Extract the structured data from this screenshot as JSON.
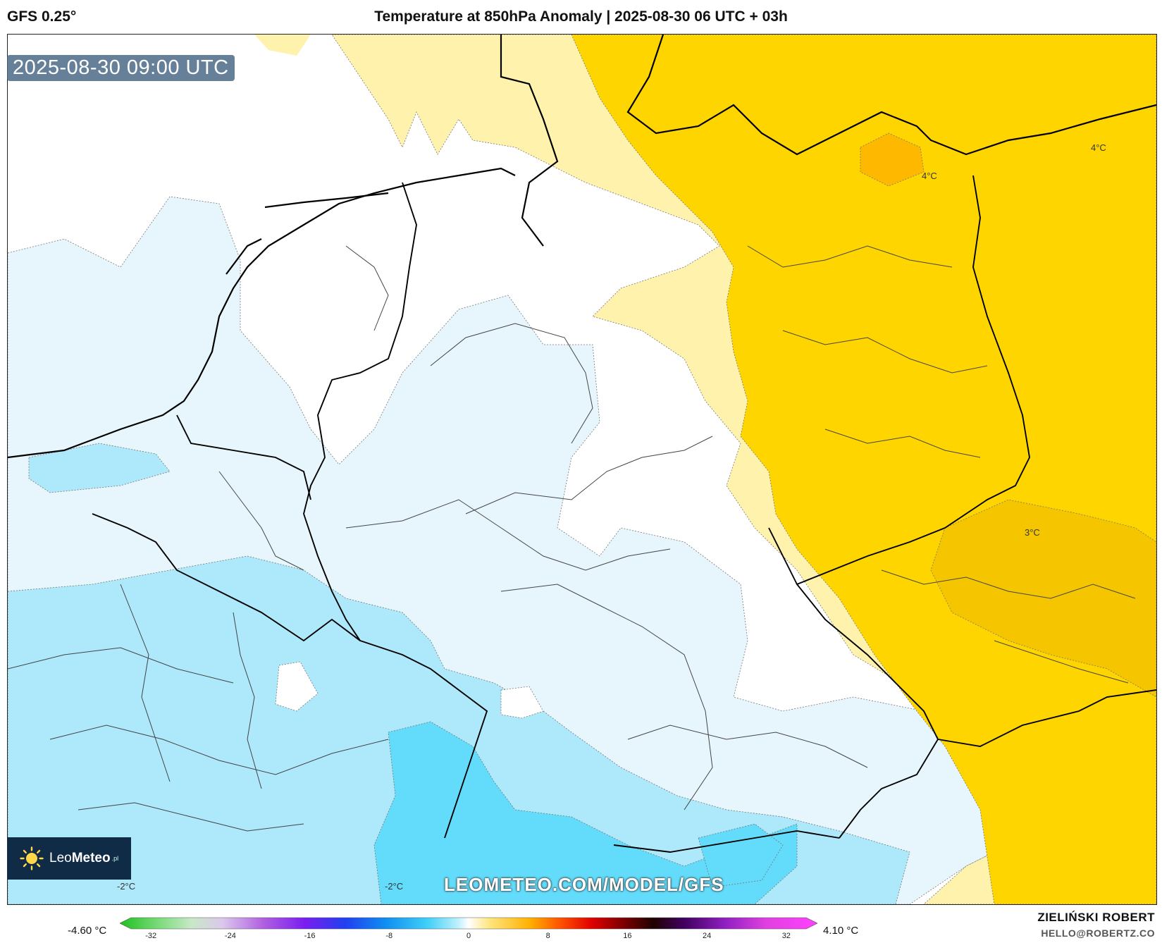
{
  "header": {
    "model_name": "GFS 0.25°",
    "title": "Temperature at 850hPa Anomaly | 2025-08-30 06 UTC + 03h"
  },
  "map": {
    "valid_time": "2025-08-30 09:00 UTC",
    "watermark": "LEOMETEO.COM/MODEL/GFS",
    "contour_labels": [
      "4°C",
      "4°C",
      "3°C",
      "-2°C",
      "-2°C"
    ],
    "colors": {
      "strong_warm": "#ffb800",
      "warm": "#ffd500",
      "mild_warm": "#fff2ad",
      "neutral": "#ffffff",
      "mild_cool": "#e7f6fd",
      "cool": "#ade9fb",
      "cold": "#62dcfa"
    }
  },
  "logo": {
    "name_light": "Leo",
    "name_bold": "Meteo",
    "suffix": ".pl",
    "icon": "sun-icon"
  },
  "colorbar": {
    "min_label": "-4.60 °C",
    "max_label": "4.10 °C",
    "ticks": [
      "-32",
      "-24",
      "-16",
      "-8",
      "0",
      "8",
      "16",
      "24",
      "32"
    ],
    "tick_values": [
      -32,
      -24,
      -16,
      -8,
      0,
      8,
      16,
      24,
      32
    ],
    "range": [
      -34,
      34
    ],
    "stops": [
      {
        "v": -34,
        "c": "#20c020"
      },
      {
        "v": -30,
        "c": "#7fdc7f"
      },
      {
        "v": -27,
        "c": "#c8e8c8"
      },
      {
        "v": -24,
        "c": "#dcc8ec"
      },
      {
        "v": -20,
        "c": "#b060e0"
      },
      {
        "v": -16,
        "c": "#7a1ef0"
      },
      {
        "v": -12,
        "c": "#2040f0"
      },
      {
        "v": -8,
        "c": "#1090f0"
      },
      {
        "v": -4,
        "c": "#40d0f8"
      },
      {
        "v": -1,
        "c": "#c0f0fc"
      },
      {
        "v": 0,
        "c": "#ffffff"
      },
      {
        "v": 2,
        "c": "#ffe680"
      },
      {
        "v": 6,
        "c": "#ffb000"
      },
      {
        "v": 9,
        "c": "#ff5000"
      },
      {
        "v": 12,
        "c": "#e00000"
      },
      {
        "v": 15,
        "c": "#800000"
      },
      {
        "v": 18,
        "c": "#200000"
      },
      {
        "v": 21,
        "c": "#400060"
      },
      {
        "v": 25,
        "c": "#9020c0"
      },
      {
        "v": 29,
        "c": "#e040e0"
      },
      {
        "v": 34,
        "c": "#ff40ff"
      }
    ]
  },
  "credits": {
    "author": "ZIELIŃSKI ROBERT",
    "email": "HELLO@ROBERTZ.CO"
  }
}
